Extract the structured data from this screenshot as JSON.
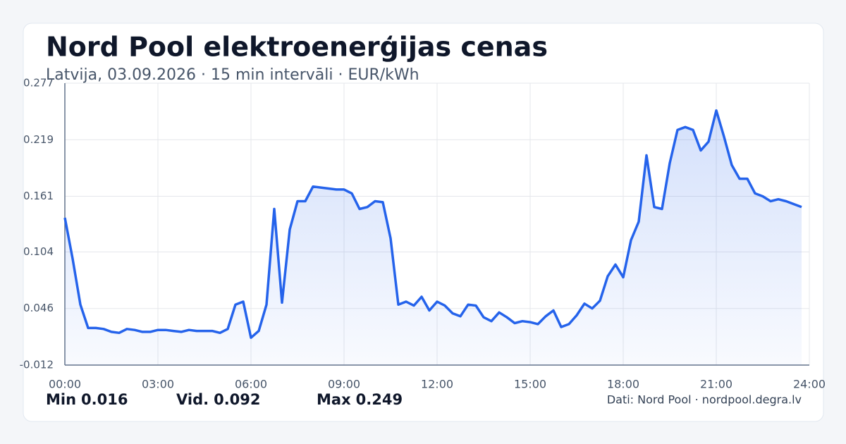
{
  "chart_data": {
    "type": "area",
    "title": "Nord Pool elektroenerģijas cenas",
    "subtitle": "Latvija, 03.09.2026 · 15 min intervāli · EUR/kWh",
    "color": "#2563eb",
    "grid": true,
    "x": [
      0,
      0.25,
      0.5,
      0.75,
      1,
      1.25,
      1.5,
      1.75,
      2,
      2.25,
      2.5,
      2.75,
      3,
      3.25,
      3.5,
      3.75,
      4,
      4.25,
      4.5,
      4.75,
      5,
      5.25,
      5.5,
      5.75,
      6,
      6.25,
      6.5,
      6.75,
      7,
      7.25,
      7.5,
      7.75,
      8,
      8.25,
      8.5,
      8.75,
      9,
      9.25,
      9.5,
      9.75,
      10,
      10.25,
      10.5,
      10.75,
      11,
      11.25,
      11.5,
      11.75,
      12,
      12.25,
      12.5,
      12.75,
      13,
      13.25,
      13.5,
      13.75,
      14,
      14.25,
      14.5,
      14.75,
      15,
      15.25,
      15.5,
      15.75,
      16,
      16.25,
      16.5,
      16.75,
      17,
      17.25,
      17.5,
      17.75,
      18,
      18.25,
      18.5,
      18.75,
      19,
      19.25,
      19.5,
      19.75,
      20,
      20.25,
      20.5,
      20.75,
      21,
      21.25,
      21.5,
      21.75,
      22,
      22.25,
      22.5,
      22.75,
      23,
      23.25,
      23.5,
      23.75
    ],
    "values": [
      0.139,
      0.097,
      0.05,
      0.026,
      0.026,
      0.025,
      0.022,
      0.021,
      0.025,
      0.024,
      0.022,
      0.022,
      0.024,
      0.024,
      0.023,
      0.022,
      0.024,
      0.023,
      0.023,
      0.023,
      0.021,
      0.025,
      0.05,
      0.053,
      0.016,
      0.023,
      0.05,
      0.148,
      0.052,
      0.127,
      0.156,
      0.156,
      0.171,
      0.17,
      0.169,
      0.168,
      0.168,
      0.164,
      0.148,
      0.15,
      0.156,
      0.155,
      0.118,
      0.05,
      0.053,
      0.049,
      0.058,
      0.044,
      0.053,
      0.049,
      0.041,
      0.038,
      0.05,
      0.049,
      0.037,
      0.033,
      0.042,
      0.037,
      0.031,
      0.033,
      0.032,
      0.03,
      0.038,
      0.044,
      0.027,
      0.03,
      0.039,
      0.051,
      0.046,
      0.054,
      0.079,
      0.091,
      0.078,
      0.116,
      0.135,
      0.203,
      0.15,
      0.148,
      0.195,
      0.229,
      0.232,
      0.229,
      0.208,
      0.217,
      0.249,
      0.222,
      0.193,
      0.179,
      0.179,
      0.164,
      0.161,
      0.156,
      0.158,
      0.156,
      0.153,
      0.15
    ],
    "xlim": [
      0,
      24
    ],
    "xticks": [
      {
        "value": 0,
        "label": "00:00"
      },
      {
        "value": 3,
        "label": "03:00"
      },
      {
        "value": 6,
        "label": "06:00"
      },
      {
        "value": 9,
        "label": "09:00"
      },
      {
        "value": 12,
        "label": "12:00"
      },
      {
        "value": 15,
        "label": "15:00"
      },
      {
        "value": 18,
        "label": "18:00"
      },
      {
        "value": 21,
        "label": "21:00"
      },
      {
        "value": 24,
        "label": "24:00"
      }
    ],
    "ylim": [
      -0.012,
      0.277
    ],
    "yticks": [
      -0.012,
      0.046,
      0.104,
      0.161,
      0.219,
      0.277
    ],
    "stats": [
      {
        "label": "Min",
        "value": 0.016
      },
      {
        "label": "Vid.",
        "value": 0.092
      },
      {
        "label": "Max",
        "value": 0.249
      }
    ],
    "source": "Dati: Nord Pool · nordpool.degra.lv"
  }
}
